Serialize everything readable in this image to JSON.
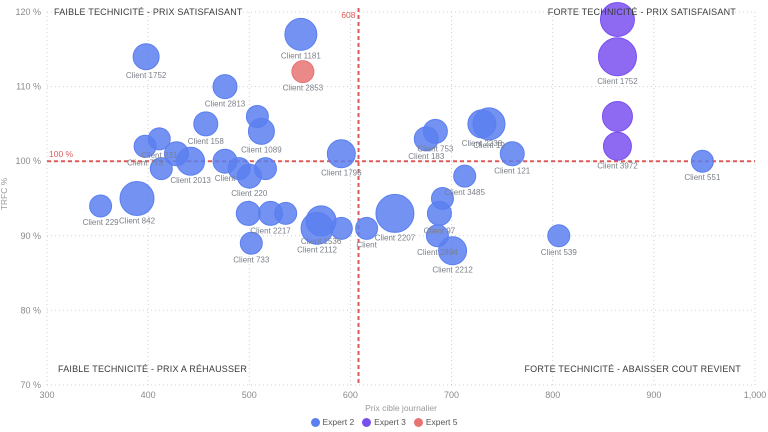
{
  "chart_data": {
    "type": "scatter",
    "xlabel": "Prix cible journalier",
    "ylabel": "TRFC %",
    "xlim": [
      300,
      1000
    ],
    "ylim": [
      70,
      120
    ],
    "x_ticks": [
      "300",
      "400",
      "500",
      "600",
      "700",
      "800",
      "900",
      "1,000"
    ],
    "y_ticks": [
      "70 %",
      "80 %",
      "90 %",
      "100 %",
      "110 %",
      "120 %"
    ],
    "grid": true,
    "legend_position": "bottom",
    "reference_lines": {
      "x": 608,
      "x_label": "608",
      "y": 100,
      "y_label": "100 %"
    },
    "quadrant_labels": {
      "top_left": "FAIBLE TECHNICITÉ - PRIX SATISFAISANT",
      "top_right": "FORTE TECHNICITÉ - PRIX SATISFAISANT",
      "bottom_left": "FAIBLE TECHNICITÉ - PRIX A RÉHAUSSER",
      "bottom_right": "FORTE TECHNICITÉ - ABAISSER COUT REVIENT"
    },
    "series": [
      {
        "name": "Expert 2",
        "color": "#5b7ff0",
        "points": [
          {
            "x": 398,
            "y": 114,
            "size": 13,
            "label": "Client 1752"
          },
          {
            "x": 551,
            "y": 117,
            "size": 16,
            "label": "Client 1181"
          },
          {
            "x": 476,
            "y": 110,
            "size": 12,
            "label": "Client 2813"
          },
          {
            "x": 397,
            "y": 102,
            "size": 11,
            "label": "Client 773"
          },
          {
            "x": 411,
            "y": 103,
            "size": 11,
            "label": "Client 231"
          },
          {
            "x": 457,
            "y": 105,
            "size": 12,
            "label": "Client 158"
          },
          {
            "x": 508,
            "y": 106,
            "size": 11,
            "label": ""
          },
          {
            "x": 512,
            "y": 104,
            "size": 13,
            "label": "Client 1089"
          },
          {
            "x": 428,
            "y": 101,
            "size": 12,
            "label": ""
          },
          {
            "x": 413,
            "y": 99,
            "size": 11,
            "label": ""
          },
          {
            "x": 442,
            "y": 100,
            "size": 14,
            "label": "Client 2013"
          },
          {
            "x": 476,
            "y": 100,
            "size": 12,
            "label": "Client"
          },
          {
            "x": 490,
            "y": 99,
            "size": 11,
            "label": ""
          },
          {
            "x": 500,
            "y": 98,
            "size": 12,
            "label": "Client 220"
          },
          {
            "x": 516,
            "y": 99,
            "size": 11,
            "label": ""
          },
          {
            "x": 353,
            "y": 94,
            "size": 11,
            "label": "Client 229"
          },
          {
            "x": 389,
            "y": 95,
            "size": 17,
            "label": "Client 842"
          },
          {
            "x": 499,
            "y": 93,
            "size": 12,
            "label": ""
          },
          {
            "x": 521,
            "y": 93,
            "size": 12,
            "label": "Client 2217"
          },
          {
            "x": 536,
            "y": 93,
            "size": 11,
            "label": ""
          },
          {
            "x": 502,
            "y": 89,
            "size": 11,
            "label": "Client 733"
          },
          {
            "x": 571,
            "y": 92,
            "size": 15,
            "label": "Client 1536"
          },
          {
            "x": 567,
            "y": 91,
            "size": 16,
            "label": "Client 2112"
          },
          {
            "x": 591,
            "y": 101,
            "size": 14,
            "label": "Client 1796"
          },
          {
            "x": 591,
            "y": 91,
            "size": 11,
            "label": ""
          },
          {
            "x": 616,
            "y": 91,
            "size": 11,
            "label": "Client"
          },
          {
            "x": 644,
            "y": 93,
            "size": 19,
            "label": "Client 2207"
          },
          {
            "x": 675,
            "y": 103,
            "size": 12,
            "label": "Client 183"
          },
          {
            "x": 684,
            "y": 104,
            "size": 12,
            "label": "Client 753"
          },
          {
            "x": 730,
            "y": 105,
            "size": 14,
            "label": "Client 2238"
          },
          {
            "x": 737,
            "y": 105,
            "size": 16,
            "label": "Client 19"
          },
          {
            "x": 760,
            "y": 101,
            "size": 12,
            "label": "Client 121"
          },
          {
            "x": 713,
            "y": 98,
            "size": 11,
            "label": "Client 3485"
          },
          {
            "x": 691,
            "y": 95,
            "size": 11,
            "label": ""
          },
          {
            "x": 688,
            "y": 93,
            "size": 12,
            "label": "Client 97"
          },
          {
            "x": 686,
            "y": 90,
            "size": 11,
            "label": "Client 2894"
          },
          {
            "x": 701,
            "y": 88,
            "size": 14,
            "label": "Client 2212"
          },
          {
            "x": 806,
            "y": 90,
            "size": 11,
            "label": "Client 539"
          },
          {
            "x": 948,
            "y": 100,
            "size": 11,
            "label": "Client 551"
          }
        ]
      },
      {
        "name": "Expert 3",
        "color": "#7a4ff0",
        "points": [
          {
            "x": 864,
            "y": 119,
            "size": 17,
            "label": ""
          },
          {
            "x": 864,
            "y": 114,
            "size": 19,
            "label": "Client 1752"
          },
          {
            "x": 864,
            "y": 106,
            "size": 15,
            "label": ""
          },
          {
            "x": 864,
            "y": 102,
            "size": 14,
            "label": "Client 3972"
          }
        ]
      },
      {
        "name": "Expert 5",
        "color": "#e87373",
        "points": [
          {
            "x": 553,
            "y": 112,
            "size": 11,
            "label": "Client 2853"
          }
        ]
      }
    ]
  }
}
